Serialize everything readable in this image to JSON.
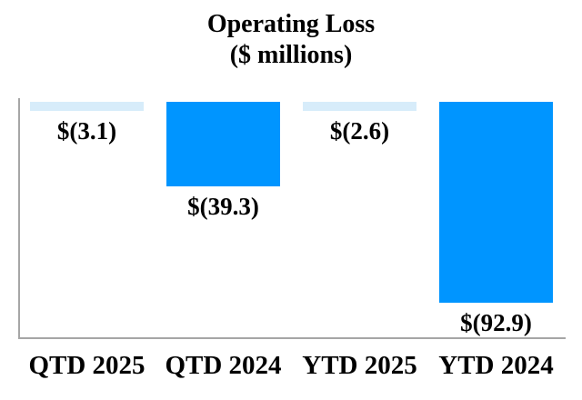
{
  "title": {
    "line1": "Operating Loss",
    "line2": "($ millions)"
  },
  "chart_data": {
    "type": "bar",
    "title": "Operating Loss ($ millions)",
    "categories": [
      "QTD 2025",
      "QTD 2024",
      "YTD 2025",
      "YTD 2024"
    ],
    "values": [
      -3.1,
      -39.3,
      -2.6,
      -92.9
    ],
    "value_labels": [
      "$(3.1)",
      "$(39.3)",
      "$(2.6)",
      "$(92.9)"
    ],
    "series_colors": [
      "#D7ECFA",
      "#0095FF",
      "#D7ECFA",
      "#0095FF"
    ],
    "colors": {
      "light_blue_bar": "#D7ECFA",
      "bright_blue_bar": "#0095FF",
      "axis": "#A6A6A6",
      "text": "#000000"
    },
    "orientation": "bars hang downward from zero baseline at top",
    "ylim": [
      -100,
      0
    ],
    "grid": false,
    "legend": false,
    "xlabel": "",
    "ylabel": ""
  }
}
